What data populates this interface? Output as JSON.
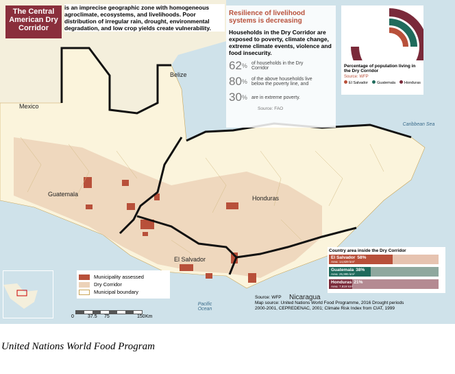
{
  "header": {
    "title": "The Central American Dry Corridor",
    "description": "is an imprecise geographic zone with homogeneous agroclimate, ecosystems, and livelihoods. Poor distribution of irregular rain, drought, environmental degradation, and low crop yields create vulnerability."
  },
  "resilience": {
    "title": "Resilience of livelihood systems is decreasing",
    "text": "Households in the Dry Corridor are exposed to poverty, climate change, extreme climate events, violence and food insecurity.",
    "stats": [
      {
        "number": "62",
        "unit": "%",
        "text": "of households in the Dry Corridor"
      },
      {
        "number": "80",
        "unit": "%",
        "text": "of the above households live below the poverty line, and"
      },
      {
        "number": "30",
        "unit": "%",
        "text": "are in extreme poverty."
      }
    ],
    "source": "Source: FAO"
  },
  "population_chart": {
    "title": "Percentage of population living in the Dry Corridor",
    "source": "Source: WFP",
    "legend": [
      "El Salvador",
      "Guatemala",
      "Honduras"
    ]
  },
  "labels": {
    "mexico": "Mexico",
    "belize": "Belize",
    "guatemala": "Guatemala",
    "honduras": "Honduras",
    "el_salvador": "El Salvador",
    "nicaragua": "Nicaragua",
    "caribbean": "Caribbean Sea",
    "pacific": "Pacific Ocean"
  },
  "legend": [
    "Municipality assessed",
    "Dry Corridor",
    "Municipal boundary"
  ],
  "scale": {
    "ticks": [
      "0",
      "37.5",
      "75",
      "150"
    ],
    "unit": "Km"
  },
  "area_chart": {
    "title": "Country area inside the Dry Corridor",
    "bars": [
      {
        "country": "El Salvador",
        "value": 58,
        "value_label": "58%",
        "area": "Area: 14,829 km²"
      },
      {
        "country": "Guatemala",
        "value": 38,
        "value_label": "38%",
        "area": "Area: 25,995 km²"
      },
      {
        "country": "Honduras",
        "value": 21,
        "value_label": "21%",
        "area": "Area: 7,819 km²"
      }
    ]
  },
  "sources": {
    "source": "Source: WFP",
    "map_source": "Map source: United Nations World Food Programme, 2016 Drought periods 2000-2001, CEPREDENAC, 2001; Climate Risk Index from CIAT, 1999"
  },
  "caption": "United Nations World Food Program"
}
